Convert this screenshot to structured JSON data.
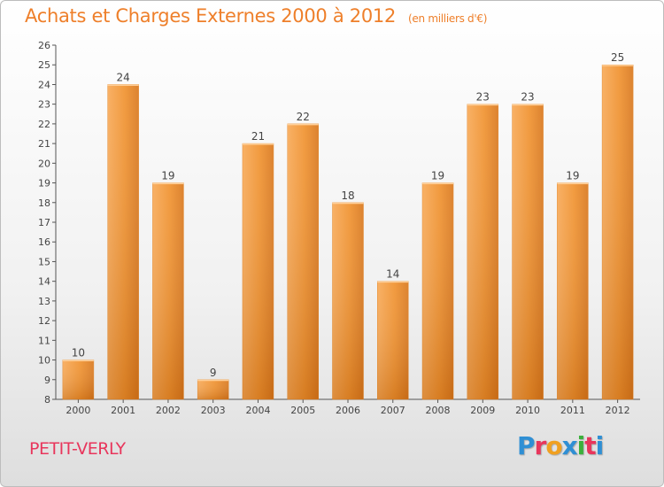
{
  "header": {
    "title": "Achats et Charges Externes 2000 à 2012",
    "subtitle": "(en milliers d'€)"
  },
  "footer": {
    "town": "PETIT-VERLY",
    "logo_letters": [
      "P",
      "r",
      "o",
      "x",
      "i",
      "t",
      "i"
    ],
    "logo_colors": [
      "#2f8fd4",
      "#e8365c",
      "#f0a020",
      "#2f8fd4",
      "#3bb03b",
      "#e8365c",
      "#2f8fd4"
    ]
  },
  "colors": {
    "bar": "#f0922f",
    "bar_light": "#f8aa58",
    "bar_dark": "#c96c18",
    "axis": "#555555"
  },
  "chart_data": {
    "type": "bar",
    "title": "Achats et Charges Externes 2000 à 2012",
    "subtitle": "(en milliers d'€)",
    "xlabel": "",
    "ylabel": "",
    "categories": [
      "2000",
      "2001",
      "2002",
      "2003",
      "2004",
      "2005",
      "2006",
      "2007",
      "2008",
      "2009",
      "2010",
      "2011",
      "2012"
    ],
    "values": [
      10,
      24,
      19,
      9,
      21,
      22,
      18,
      14,
      19,
      23,
      23,
      19,
      25
    ],
    "ylim": [
      8,
      26
    ],
    "yticks": [
      8,
      9,
      10,
      11,
      12,
      13,
      14,
      15,
      16,
      17,
      18,
      19,
      20,
      21,
      22,
      23,
      24,
      25,
      26
    ],
    "grid": false,
    "legend": "none"
  }
}
